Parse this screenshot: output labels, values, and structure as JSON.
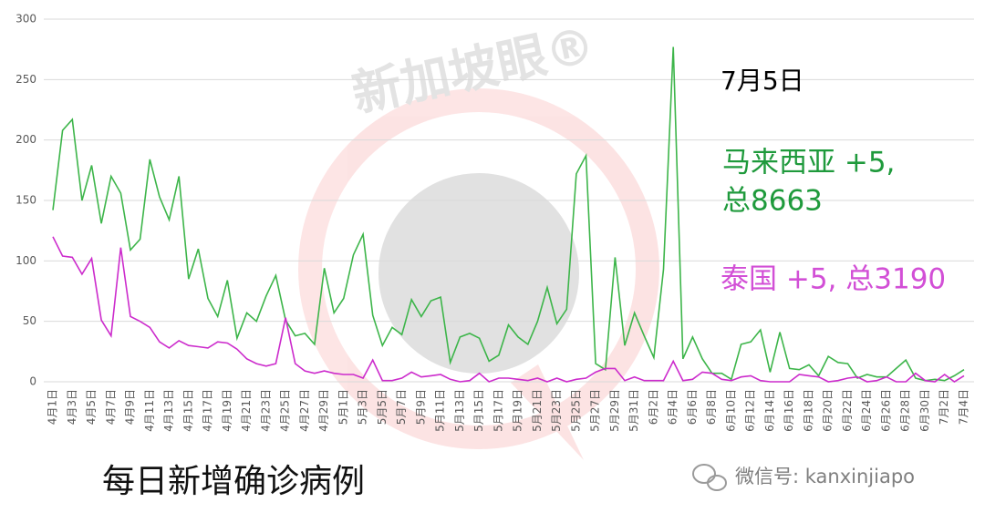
{
  "chart_data": {
    "type": "line",
    "title": "每日新增确诊病例",
    "credit": "微信号: kanxinjiapo",
    "watermark": "新加坡眼®",
    "annotations": [
      {
        "text": "7月5日",
        "color": "#000000"
      },
      {
        "text": "马来西亚 +5,",
        "color": "#1f9a3c"
      },
      {
        "text": "总8663",
        "color": "#1f9a3c"
      },
      {
        "text": "泰国 +5, 总3190",
        "color": "#d24fd6"
      }
    ],
    "categories": [
      "4月1日",
      null,
      "4月3日",
      null,
      "4月5日",
      null,
      "4月7日",
      null,
      "4月9日",
      null,
      "4月11日",
      null,
      "4月13日",
      null,
      "4月15日",
      null,
      "4月17日",
      null,
      "4月19日",
      null,
      "4月21日",
      null,
      "4月23日",
      null,
      "4月25日",
      null,
      "4月27日",
      null,
      "4月29日",
      null,
      "5月1日",
      null,
      "5月3日",
      null,
      "5月5日",
      null,
      "5月7日",
      null,
      "5月9日",
      null,
      "5月11日",
      null,
      "5月13日",
      null,
      "5月15日",
      null,
      "5月17日",
      null,
      "5月19日",
      null,
      "5月21日",
      null,
      "5月23日",
      null,
      "5月25日",
      null,
      "5月27日",
      null,
      "5月29日",
      null,
      "5月31日",
      null,
      "6月2日",
      null,
      "6月4日",
      null,
      "6月6日",
      null,
      "6月8日",
      null,
      "6月10日",
      null,
      "6月12日",
      null,
      "6月14日",
      null,
      "6月16日",
      null,
      "6月18日",
      null,
      "6月20日",
      null,
      "6月22日",
      null,
      "6月24日",
      null,
      "6月26日",
      null,
      "6月28日",
      null,
      "6月30日",
      null,
      "7月2日",
      null,
      "7月4日"
    ],
    "series": [
      {
        "color": "#3db54a",
        "values": [
          142,
          208,
          217,
          150,
          179,
          131,
          170,
          156,
          109,
          118,
          184,
          153,
          134,
          170,
          85,
          110,
          69,
          54,
          84,
          36,
          57,
          50,
          71,
          88,
          51,
          38,
          40,
          31,
          94,
          57,
          69,
          105,
          122,
          55,
          30,
          45,
          39,
          68,
          54,
          67,
          70,
          16,
          37,
          40,
          36,
          17,
          22,
          47,
          37,
          31,
          50,
          78,
          48,
          60,
          172,
          187,
          15,
          10,
          103,
          30,
          57,
          38,
          20,
          93,
          277,
          19,
          37,
          19,
          7,
          7,
          2,
          31,
          33,
          43,
          8,
          41,
          11,
          10,
          14,
          5,
          21,
          16,
          15,
          3,
          6,
          4,
          4,
          11,
          18,
          3,
          1,
          2,
          1,
          5,
          10
        ]
      },
      {
        "color": "#cc2bcc",
        "values": [
          120,
          104,
          103,
          89,
          102,
          51,
          38,
          111,
          54,
          50,
          45,
          33,
          28,
          34,
          30,
          29,
          28,
          33,
          32,
          27,
          19,
          15,
          13,
          15,
          53,
          15,
          9,
          7,
          9,
          7,
          6,
          6,
          3,
          18,
          1,
          1,
          3,
          8,
          4,
          5,
          6,
          2,
          0,
          1,
          7,
          0,
          3,
          3,
          2,
          1,
          3,
          0,
          3,
          0,
          2,
          3,
          8,
          11,
          11,
          1,
          4,
          1,
          1,
          1,
          17,
          1,
          2,
          8,
          7,
          2,
          1,
          4,
          5,
          1,
          0,
          0,
          0,
          6,
          5,
          4,
          0,
          1,
          3,
          4,
          0,
          1,
          4,
          0,
          0,
          7,
          1,
          0,
          6,
          0,
          5
        ]
      }
    ],
    "ylim": [
      0,
      300
    ],
    "yticks": [
      0,
      50,
      100,
      150,
      200,
      250,
      300
    ],
    "grid": true
  }
}
